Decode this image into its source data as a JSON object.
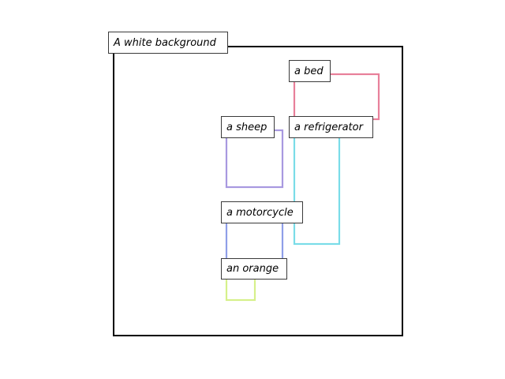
{
  "background": {
    "label": "A white background",
    "color": "#000000"
  },
  "objects": [
    {
      "id": "bed",
      "label": "a bed",
      "color": "#e8809a"
    },
    {
      "id": "sheep",
      "label": "a sheep",
      "color": "#a899e0"
    },
    {
      "id": "refrigerator",
      "label": "a refrigerator",
      "color": "#7adce8"
    },
    {
      "id": "motorcycle",
      "label": "a motorcycle",
      "color": "#8f9ee8"
    },
    {
      "id": "orange",
      "label": "an orange",
      "color": "#d6f08a"
    }
  ]
}
